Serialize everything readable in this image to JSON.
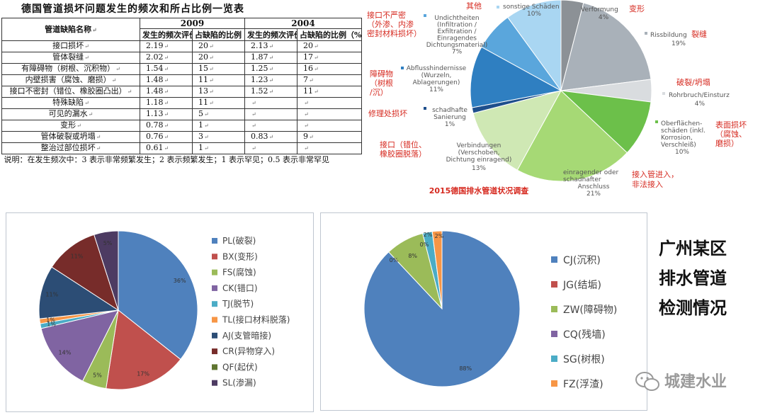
{
  "table": {
    "title": "德国管道损坏问题发生的频次和所占比例一览表",
    "years": [
      "2009",
      "2004"
    ],
    "col_name": "管道缺陷名称",
    "col_freq": "发生的频次评价",
    "col_ratio": "占缺陷的比例（%）",
    "rows": [
      {
        "name": "接口损坏",
        "f2009": "2.19",
        "r2009": "20",
        "f2004": "2.13",
        "r2004": "20"
      },
      {
        "name": "管体裂缝",
        "f2009": "2.02",
        "r2009": "20",
        "f2004": "1.87",
        "r2004": "17"
      },
      {
        "name": "有障碍物（树根、沉积物）",
        "f2009": "1.54",
        "r2009": "15",
        "f2004": "1.25",
        "r2004": "16"
      },
      {
        "name": "内壁损害（腐蚀、磨损）",
        "f2009": "1.48",
        "r2009": "11",
        "f2004": "1.23",
        "r2004": "7"
      },
      {
        "name": "接口不密封（错位、橡胶圈凸出）",
        "f2009": "1.48",
        "r2009": "13",
        "f2004": "1.52",
        "r2004": "11"
      },
      {
        "name": "特殊缺陷",
        "f2009": "1.18",
        "r2009": "11",
        "f2004": "",
        "r2004": ""
      },
      {
        "name": "可见的漏水",
        "f2009": "1.13",
        "r2009": "5",
        "f2004": "",
        "r2004": ""
      },
      {
        "name": "变形",
        "f2009": "0.78",
        "r2009": "1",
        "f2004": "",
        "r2004": ""
      },
      {
        "name": "管体破裂或坍塌",
        "f2009": "0.76",
        "r2009": "3",
        "f2004": "0.83",
        "r2004": "9"
      },
      {
        "name": "整治过部位损坏",
        "f2009": "0.61",
        "r2009": "1",
        "f2004": "",
        "r2004": ""
      }
    ],
    "note": "说明：在发生频次中：3 表示非常频繁发生；2 表示频繁发生；1 表示罕见；0.5 表示非常罕见"
  },
  "chart_data": [
    {
      "type": "pie",
      "title": "2015德国排水管道状况调查",
      "slices": [
        {
          "label": "Verformung",
          "cn": "变形",
          "value": 4,
          "color": "#8c9196"
        },
        {
          "label": "Rissbildung",
          "cn": "裂缝",
          "value": 19,
          "color": "#a9b1b9"
        },
        {
          "label": "Rohrbruch/Einsturz",
          "cn": "破裂/坍塌",
          "value": 4,
          "color": "#d9dcdf"
        },
        {
          "label": "Oberflächen-schäden (inkl. Korrosion, Verschleiß)",
          "cn": "表面损坏（腐蚀、磨损）",
          "value": 10,
          "color": "#6cc04a"
        },
        {
          "label": "einragender oder schadhafter Anschluss",
          "cn": "接入管进入，非法接入",
          "value": 21,
          "color": "#a6d975"
        },
        {
          "label": "Verbindungen (Verschoben, Dichtung einragend)",
          "cn": "接口（错位、橡胶圈脱落）",
          "value": 13,
          "color": "#cfe8b4"
        },
        {
          "label": "schadhafte Sanierung",
          "cn": "修理处损坏",
          "value": 1,
          "color": "#1e4f8c"
        },
        {
          "label": "Abflusshindernisse (Wurzeln, Ablagerungen)",
          "cn": "障碍物（树根/沉）",
          "value": 11,
          "color": "#2f7fc1"
        },
        {
          "label": "Undichtheiten (Infiltration / Exfiltration / Einragendes Dichtungsmaterial)",
          "cn": "接口不严密（外渗、内渗密封材料损坏）",
          "value": 7,
          "color": "#5aa6dc"
        },
        {
          "label": "sonstige Schäden",
          "cn": "其他",
          "value": 10,
          "color": "#a9d6f2"
        }
      ]
    },
    {
      "type": "pie",
      "series": [
        {
          "label": "PL(破裂)",
          "value": 36,
          "color": "#4f81bd"
        },
        {
          "label": "BX(变形)",
          "value": 17,
          "color": "#c0504d"
        },
        {
          "label": "FS(腐蚀)",
          "value": 5,
          "color": "#9bbb59"
        },
        {
          "label": "CK(错口)",
          "value": 14,
          "color": "#8064a2"
        },
        {
          "label": "TJ(脱节)",
          "value": 1,
          "color": "#4bacc6"
        },
        {
          "label": "TL(接口材料脱落)",
          "value": 1,
          "color": "#f79646"
        },
        {
          "label": "AJ(支管暗接)",
          "value": 11,
          "color": "#2c4d75"
        },
        {
          "label": "CR(异物穿入)",
          "value": 11,
          "color": "#772c2a"
        },
        {
          "label": "QF(起伏)",
          "value": 0,
          "color": "#5f7530"
        },
        {
          "label": "SL(渗漏)",
          "value": 5,
          "color": "#4d3b62"
        }
      ],
      "pct_labels": [
        "36%",
        "17%",
        "5%",
        "14%",
        "1%",
        "1%",
        "11%",
        "11%",
        "5%"
      ]
    },
    {
      "type": "pie",
      "series": [
        {
          "label": "CJ(沉积)",
          "value": 88,
          "color": "#4f81bd"
        },
        {
          "label": "JG(结垢)",
          "value": 0,
          "color": "#c0504d"
        },
        {
          "label": "ZW(障碍物)",
          "value": 8,
          "color": "#9bbb59"
        },
        {
          "label": "CQ(残墙)",
          "value": 0,
          "color": "#8064a2"
        },
        {
          "label": "SG(树根)",
          "value": 2,
          "color": "#4bacc6"
        },
        {
          "label": "FZ(浮渣)",
          "value": 2,
          "color": "#f79646"
        }
      ],
      "pct_labels": [
        "88%",
        "0%",
        "8%",
        "0%",
        "2%",
        "2%"
      ]
    }
  ],
  "side_note": [
    "广州某区",
    "排水管道",
    "检测情况"
  ],
  "watermark": "城建水业"
}
